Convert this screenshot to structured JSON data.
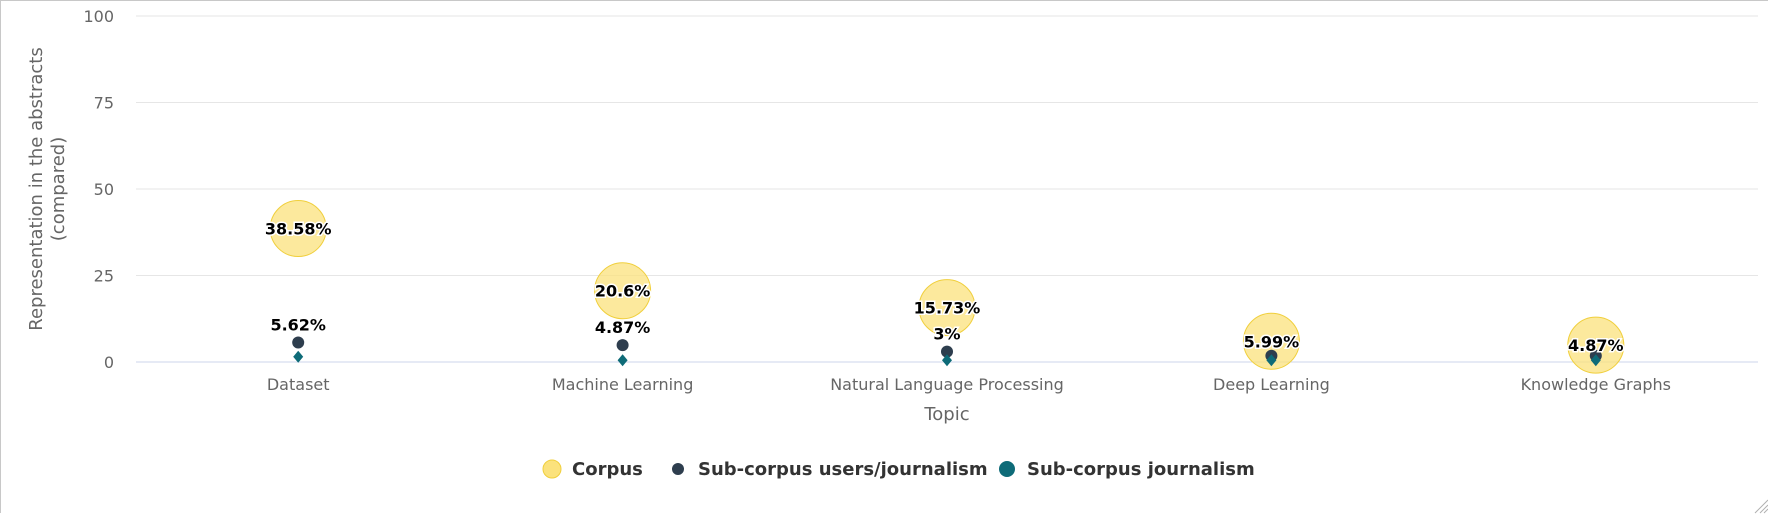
{
  "chart_data": {
    "type": "scatter",
    "categories": [
      "Dataset",
      "Machine Learning",
      "Natural Language Processing",
      "Deep Learning",
      "Knowledge Graphs"
    ],
    "xlabel": "Topic",
    "ylabel": "Representation in the abstracts (compared)",
    "ylabel_lines": [
      "Representation in the abstracts",
      "(compared)"
    ],
    "ylim": [
      0,
      100
    ],
    "yticks": [
      "0",
      "25",
      "50",
      "75",
      "100"
    ],
    "grid": true,
    "legend_position": "bottom",
    "series": [
      {
        "name": "Corpus",
        "marker": "bubble",
        "color": "#fbe27c",
        "stroke": "#f0cf3c",
        "values": [
          38.58,
          20.6,
          15.73,
          5.99,
          4.87
        ],
        "labels": [
          "38.58%",
          "20.6%",
          "15.73%",
          "5.99%",
          "4.87%"
        ]
      },
      {
        "name": "Sub-corpus users/journalism",
        "marker": "circle",
        "color": "#2e3e4e",
        "values": [
          5.62,
          4.87,
          3,
          1.8,
          1.8
        ],
        "labels": [
          "5.62%",
          "4.87%",
          "3%",
          "",
          ""
        ]
      },
      {
        "name": "Sub-corpus journalism",
        "marker": "diamond",
        "color": "#0e6b78",
        "values": [
          1.5,
          0.5,
          0.5,
          0.5,
          0.5
        ],
        "labels": [
          "",
          "",
          "",
          "",
          ""
        ]
      }
    ]
  }
}
